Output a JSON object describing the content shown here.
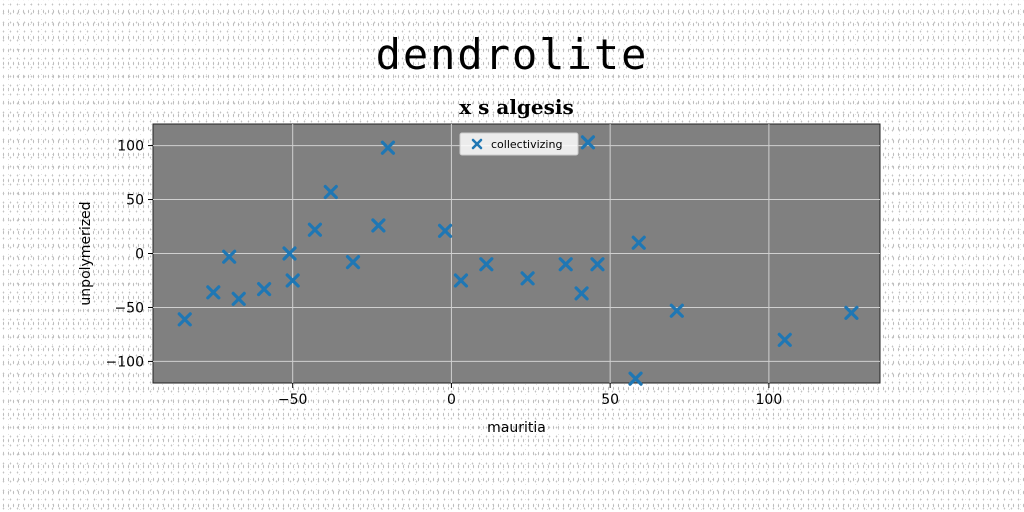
{
  "figure": {
    "suptitle": "dendrolite"
  },
  "chart_data": {
    "type": "scatter",
    "title": "x s algesis",
    "xlabel": "mauritia",
    "ylabel": "unpolymerized",
    "xlim": [
      -94,
      135
    ],
    "ylim": [
      -120,
      120
    ],
    "x_ticks": [
      -50,
      0,
      50,
      100
    ],
    "y_ticks": [
      -100,
      -50,
      0,
      50,
      100
    ],
    "grid": true,
    "legend_position": "top-center",
    "series": [
      {
        "name": "collectivizing",
        "color": "#1f77b4",
        "marker": "x",
        "x": [
          -84,
          -75,
          -70,
          -67,
          -59,
          -51,
          -50,
          -43,
          -38,
          -31,
          -23,
          -20,
          -2,
          3,
          11,
          24,
          36,
          41,
          43,
          46,
          58,
          59,
          71,
          105,
          126
        ],
        "y": [
          -61,
          -36,
          -3,
          -42,
          -33,
          0,
          -25,
          22,
          57,
          -8,
          26,
          98,
          21,
          -25,
          -10,
          -23,
          -10,
          -37,
          103,
          -10,
          -116,
          10,
          -53,
          -80,
          -55
        ]
      }
    ]
  }
}
